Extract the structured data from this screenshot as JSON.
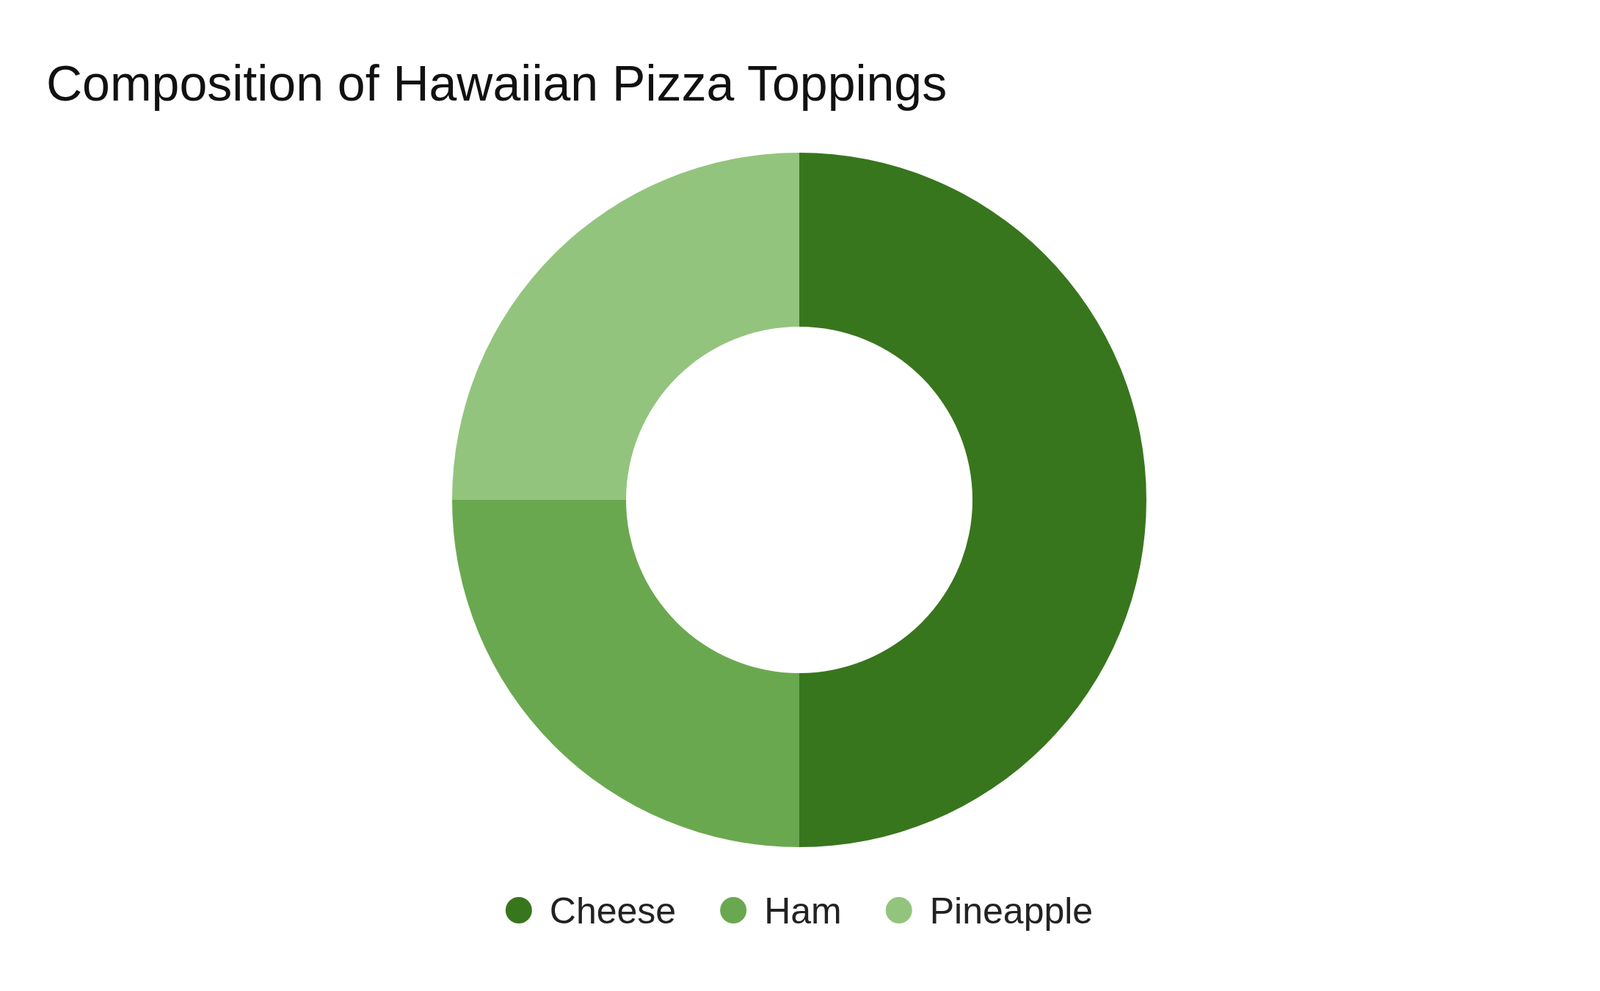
{
  "chart_data": {
    "type": "donut",
    "title": "Composition of Hawaiian Pizza Toppings",
    "categories": [
      "Cheese",
      "Ham",
      "Pineapple"
    ],
    "values": [
      50,
      25,
      25
    ],
    "colors": [
      "#38761d",
      "#6aa84f",
      "#93c47d"
    ],
    "legend": "bottom"
  }
}
